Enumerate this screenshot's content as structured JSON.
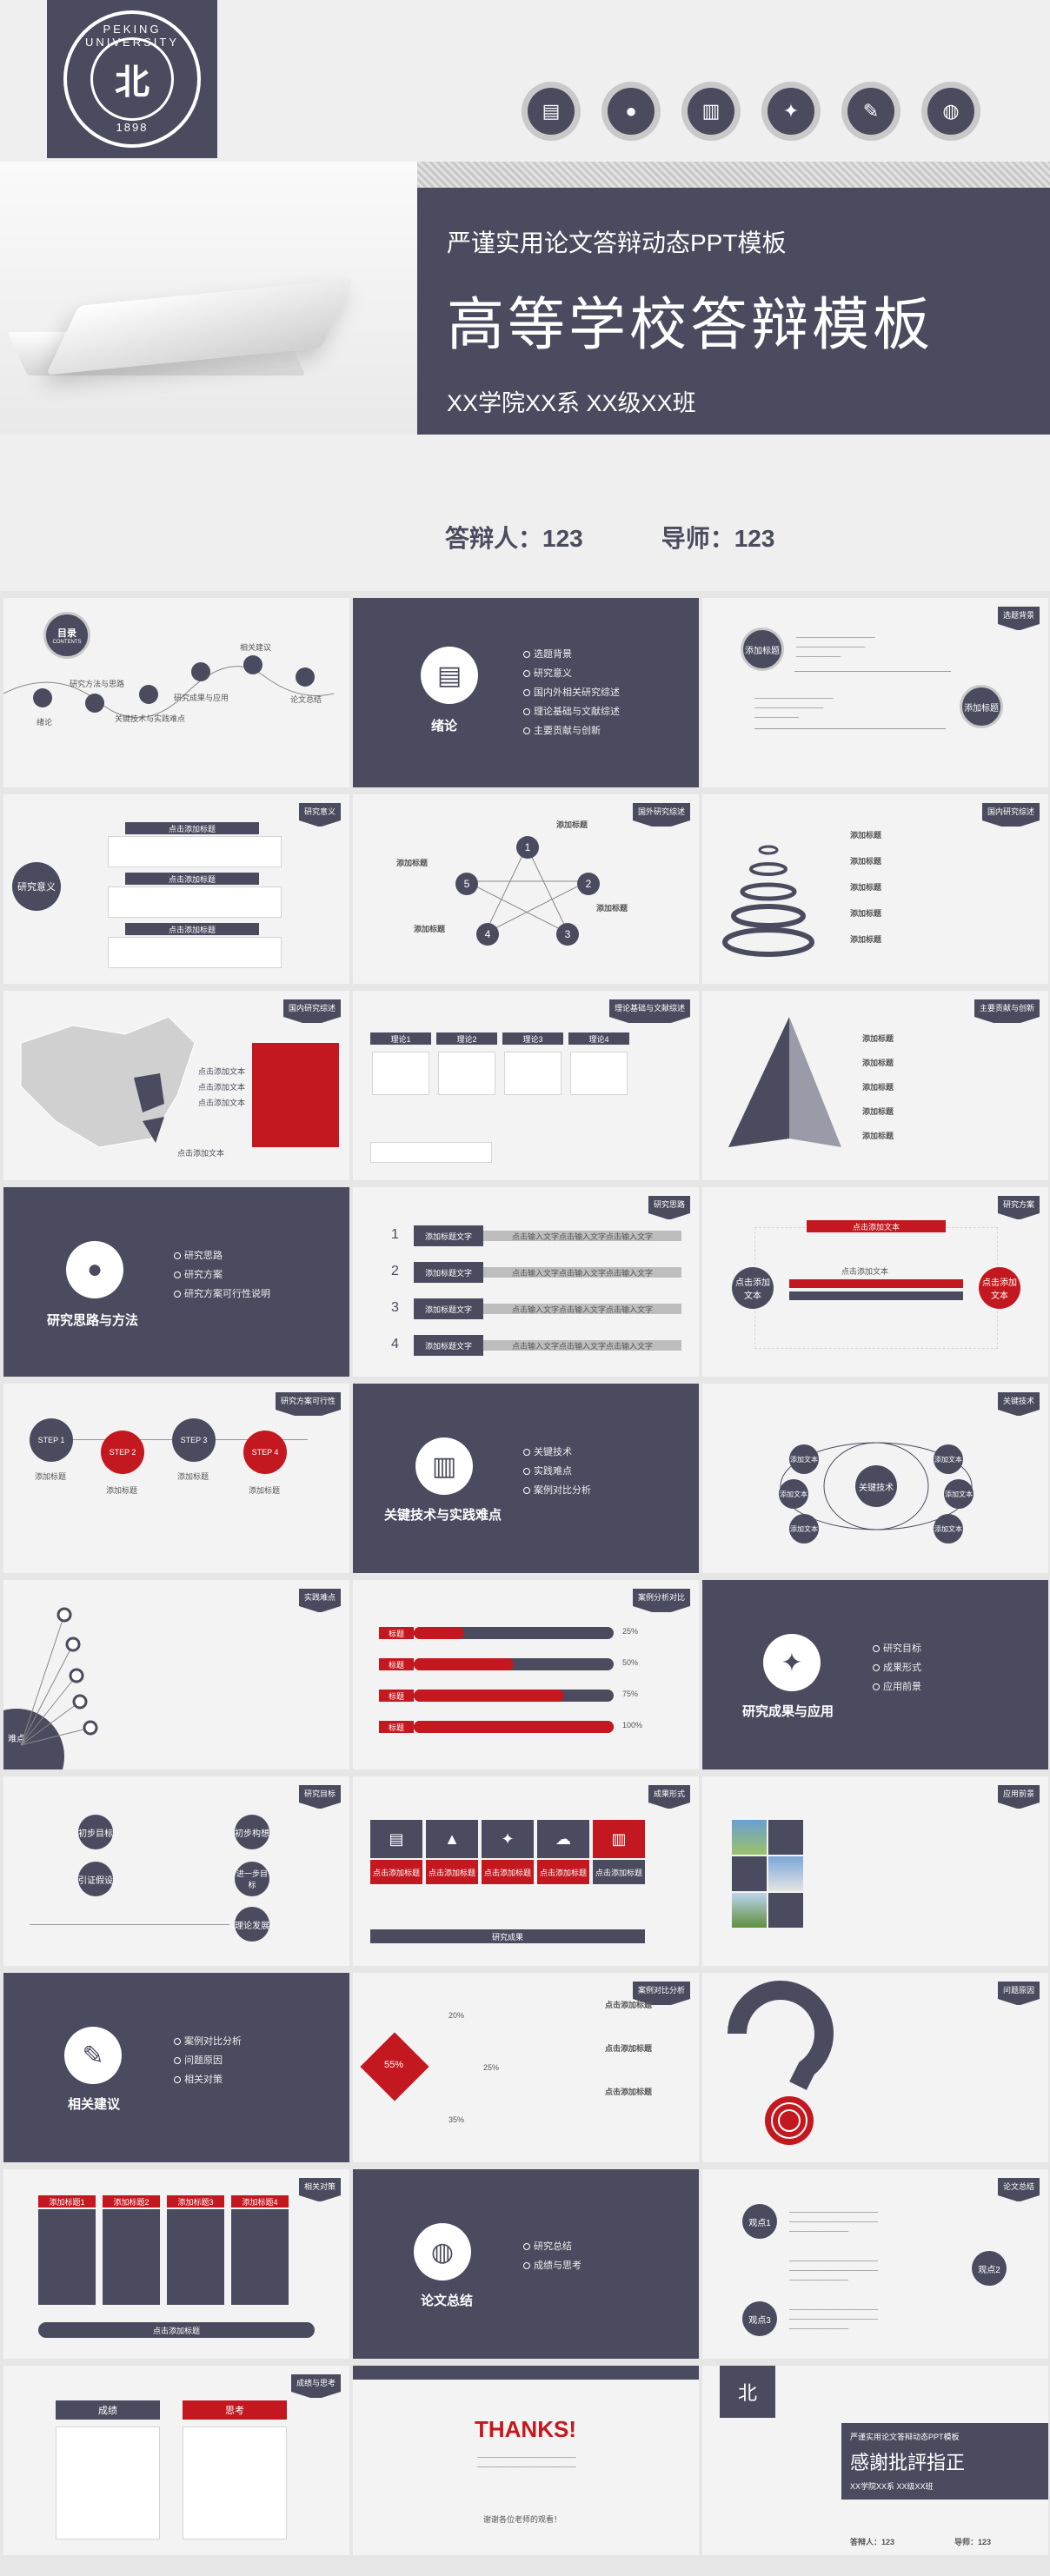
{
  "hero": {
    "logo_top": "PEKING UNIVERSITY",
    "logo_year": "1898",
    "logo_mark": "北",
    "subtitle": "严谨实用论文答辩动态PPT模板",
    "title": "高等学校答辩模板",
    "dept": "XX学院XX系   XX级XX班",
    "defender": "答辩人：123",
    "advisor": "导师：123",
    "icons": [
      "books-icon",
      "apple-icon",
      "book-icon",
      "bulb-icon",
      "edit-icon",
      "globe-icon"
    ]
  },
  "slides": {
    "toc": {
      "title": "目录",
      "title_en": "CONTENTS",
      "items": [
        "绪论",
        "研究方法与思路",
        "关键技术与实践难点",
        "研究成果与应用",
        "相关建议",
        "论文总结"
      ]
    },
    "intro": {
      "title": "绪论",
      "items": [
        "选题背景",
        "研究意义",
        "国内外相关研究综述",
        "理论基础与文献综述",
        "主要贡献与创新"
      ]
    },
    "bg": {
      "tag": "选题背景",
      "c1": "添加标题",
      "c2": "添加标题"
    },
    "significance": {
      "tag": "研究意义",
      "circle": "研究意义",
      "bars": [
        "点击添加标题",
        "点击添加标题",
        "点击添加标题"
      ]
    },
    "overseas": {
      "tag": "国外研究综述",
      "nums": [
        "1",
        "2",
        "3",
        "4",
        "5"
      ],
      "label": "添加标题"
    },
    "domestic_rings": {
      "tag": "国内研究综述",
      "label": "添加标题"
    },
    "map": {
      "tag": "国内研究综述",
      "labels": [
        "点击添加文本",
        "点击添加文本",
        "点击添加文本",
        "点击添加文本"
      ]
    },
    "theory": {
      "tag": "理论基础与文献综述",
      "cols": [
        "理论1",
        "理论2",
        "理论3",
        "理论4"
      ]
    },
    "pyramid": {
      "tag": "主要贡献与创新",
      "label": "添加标题"
    },
    "method": {
      "title": "研究思路与方法",
      "items": [
        "研究思路",
        "研究方案",
        "研究方案可行性说明"
      ]
    },
    "approach": {
      "tag": "研究思路",
      "nums": [
        "1",
        "2",
        "3",
        "4"
      ],
      "label": "添加标题文字",
      "desc": "点击输入文字点击输入文字点击输入文字"
    },
    "scheme": {
      "tag": "研究方案",
      "left": "点击添加文本",
      "right": "点击添加文本",
      "top": "点击添加文本",
      "mid": "点击添加文本"
    },
    "feasibility": {
      "tag": "研究方案可行性",
      "steps": [
        "STEP 1",
        "STEP 2",
        "STEP 3",
        "STEP 4"
      ],
      "label": "添加标题"
    },
    "tech": {
      "title": "关键技术与实践难点",
      "items": [
        "关键技术",
        "实践难点",
        "案例对比分析"
      ]
    },
    "key": {
      "tag": "关键技术",
      "center": "关键技术",
      "nodes": [
        "添加文本",
        "添加文本",
        "添加文本",
        "添加文本",
        "添加文本",
        "添加文本"
      ]
    },
    "difficulty": {
      "tag": "实践难点",
      "label": "难点"
    },
    "case": {
      "tag": "案例分析对比",
      "items": [
        "标题",
        "标题",
        "标题",
        "标题"
      ],
      "pcts": [
        "25%",
        "50%",
        "75%",
        "100%"
      ],
      "pct_values": [
        25,
        50,
        75,
        100
      ]
    },
    "results": {
      "title": "研究成果与应用",
      "items": [
        "研究目标",
        "成果形式",
        "应用前景"
      ]
    },
    "goals": {
      "tag": "研究目标",
      "l1": "初步目标",
      "l2": "引证假设",
      "r1": "初步构想",
      "r2": "进一步目标",
      "r3": "理论发展"
    },
    "output": {
      "tag": "成果形式",
      "label": "点击添加标题",
      "footer": "研究成果"
    },
    "prospect": {
      "tag": "应用前景"
    },
    "suggest": {
      "title": "相关建议",
      "items": [
        "案例对比分析",
        "问题原因",
        "相关对策"
      ]
    },
    "problem": {
      "tag": "案例对比分析",
      "pcts": [
        "20%",
        "55%",
        "25%",
        "35%"
      ],
      "label": "点击添加标题"
    },
    "cause": {
      "tag": "问题原因"
    },
    "measures": {
      "tag": "相关对策",
      "tabs": [
        "添加标题1",
        "添加标题2",
        "添加标题3",
        "添加标题4"
      ],
      "footer": "点击添加标题"
    },
    "summary": {
      "title": "论文总结",
      "items": [
        "研究总结",
        "成绩与思考"
      ]
    },
    "conclusion": {
      "tag": "论文总结",
      "v1": "观点1",
      "v2": "观点2",
      "v3": "观点3"
    },
    "reflect": {
      "tag": "成绩与思考",
      "left": "成绩",
      "right": "思考"
    },
    "thanks": {
      "title": "THANKS!",
      "sign": "谢谢各位老师的观看！"
    },
    "end": {
      "sub": "严谨实用论文答辩动态PPT模板",
      "title": "感謝批評指正",
      "dept": "XX学院XX系  XX级XX班",
      "defender": "答辩人：123",
      "advisor": "导师：123"
    }
  }
}
